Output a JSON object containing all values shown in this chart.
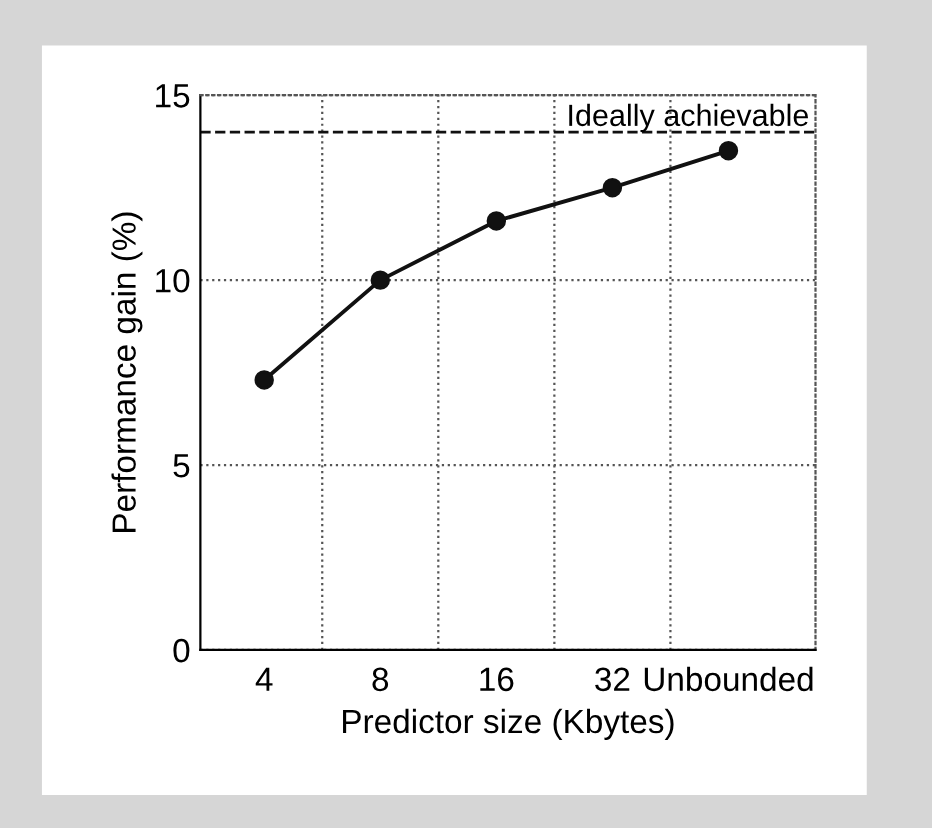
{
  "chart_data": {
    "type": "line",
    "xlabel": "Predictor size (Kbytes)",
    "ylabel": "Performance gain (%)",
    "categories": [
      "4",
      "8",
      "16",
      "32",
      "Unbounded"
    ],
    "series": [
      {
        "color": "#111111",
        "values": [
          7.3,
          10.0,
          11.6,
          12.5,
          13.5
        ]
      }
    ],
    "ylim": [
      0,
      15
    ],
    "yticks": [
      0,
      5,
      10,
      15
    ],
    "grid": true,
    "marker": "circle",
    "line_style": "solid",
    "legend": false,
    "ref_lines": [
      {
        "axis": "y",
        "value": 14,
        "label": "Ideally achievable",
        "color": "#111111",
        "line_style": "dashed"
      }
    ]
  }
}
